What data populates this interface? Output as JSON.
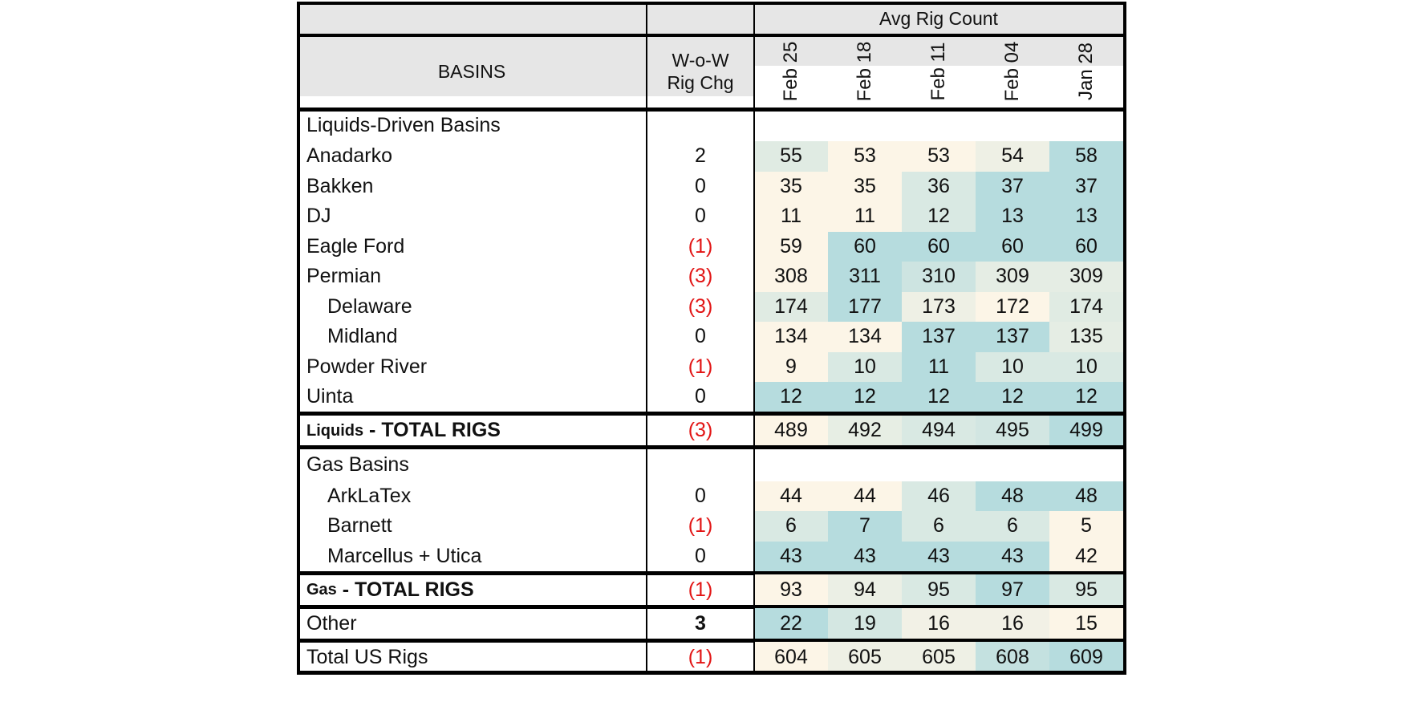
{
  "chart_data": {
    "type": "table",
    "header": {
      "group_label": "Avg Rig Count",
      "basins_label": "BASINS",
      "change_label_1": "W-o-W",
      "change_label_2": "Rig Chg",
      "weeks": [
        "Feb 25",
        "Feb 18",
        "Feb 11",
        "Feb 04",
        "Jan 28"
      ]
    },
    "sections": [
      {
        "title": "Liquids-Driven Basins",
        "rows": [
          {
            "name": "Anadarko",
            "indent": false,
            "change": "2",
            "values": [
              55,
              53,
              53,
              54,
              58
            ]
          },
          {
            "name": "Bakken",
            "indent": false,
            "change": "0",
            "values": [
              35,
              35,
              36,
              37,
              37
            ]
          },
          {
            "name": "DJ",
            "indent": false,
            "change": "0",
            "values": [
              11,
              11,
              12,
              13,
              13
            ]
          },
          {
            "name": "Eagle Ford",
            "indent": false,
            "change": "(1)",
            "values": [
              59,
              60,
              60,
              60,
              60
            ]
          },
          {
            "name": "Permian",
            "indent": false,
            "change": "(3)",
            "values": [
              308,
              311,
              310,
              309,
              309
            ]
          },
          {
            "name": "Delaware",
            "indent": true,
            "change": "(3)",
            "values": [
              174,
              177,
              173,
              172,
              174
            ]
          },
          {
            "name": "Midland",
            "indent": true,
            "change": "0",
            "values": [
              134,
              134,
              137,
              137,
              135
            ]
          },
          {
            "name": "Powder River",
            "indent": false,
            "change": "(1)",
            "values": [
              9,
              10,
              11,
              10,
              10
            ]
          },
          {
            "name": "Uinta",
            "indent": false,
            "change": "0",
            "values": [
              12,
              12,
              12,
              12,
              12
            ]
          }
        ],
        "total": {
          "prefix": "Liquids",
          "label": " - TOTAL RIGS",
          "change": "(3)",
          "values": [
            489,
            492,
            494,
            495,
            499
          ]
        }
      },
      {
        "title": "Gas Basins",
        "rows": [
          {
            "name": "ArkLaTex",
            "indent": true,
            "change": "0",
            "values": [
              44,
              44,
              46,
              48,
              48
            ]
          },
          {
            "name": "Barnett",
            "indent": true,
            "change": "(1)",
            "values": [
              6,
              7,
              6,
              6,
              5
            ]
          },
          {
            "name": "Marcellus + Utica",
            "indent": true,
            "change": "0",
            "values": [
              43,
              43,
              43,
              43,
              42
            ]
          }
        ],
        "total": {
          "prefix": "Gas",
          "label": " - TOTAL RIGS",
          "change": "(1)",
          "values": [
            93,
            94,
            95,
            97,
            95
          ]
        }
      }
    ],
    "other": {
      "name": "Other",
      "change": "3",
      "values": [
        22,
        19,
        16,
        16,
        15
      ]
    },
    "grand_total": {
      "name": "Total US Rigs",
      "change": "(1)",
      "values": [
        604,
        605,
        605,
        608,
        609
      ]
    },
    "colors": {
      "low": "#fcf5e7",
      "high": "#b6dcde",
      "negative": "#e21414",
      "section_fill": "#e6e6e6"
    }
  }
}
